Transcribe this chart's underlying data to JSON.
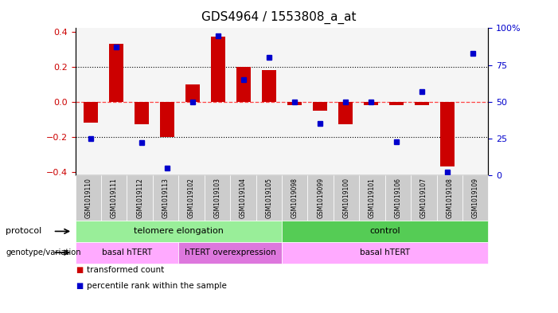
{
  "title": "GDS4964 / 1553808_a_at",
  "samples": [
    "GSM1019110",
    "GSM1019111",
    "GSM1019112",
    "GSM1019113",
    "GSM1019102",
    "GSM1019103",
    "GSM1019104",
    "GSM1019105",
    "GSM1019098",
    "GSM1019099",
    "GSM1019100",
    "GSM1019101",
    "GSM1019106",
    "GSM1019107",
    "GSM1019108",
    "GSM1019109"
  ],
  "bar_values": [
    -0.12,
    0.33,
    -0.13,
    -0.2,
    0.1,
    0.37,
    0.2,
    0.18,
    -0.02,
    -0.05,
    -0.13,
    -0.02,
    -0.02,
    -0.02,
    -0.37,
    0.0
  ],
  "dot_values": [
    25,
    87,
    22,
    5,
    50,
    95,
    65,
    80,
    50,
    35,
    50,
    50,
    23,
    57,
    2,
    83
  ],
  "ylim_left": [
    -0.42,
    0.42
  ],
  "ylim_right": [
    0,
    100
  ],
  "yticks_left": [
    -0.4,
    -0.2,
    0.0,
    0.2,
    0.4
  ],
  "yticks_right": [
    0,
    25,
    50,
    75,
    100
  ],
  "ytick_labels_right": [
    "0",
    "25",
    "50",
    "75",
    "100%"
  ],
  "bar_color": "#cc0000",
  "dot_color": "#0000cc",
  "hline_color": "#ff4444",
  "dotted_color": "#000000",
  "plot_bg_color": "#f5f5f5",
  "protocol_groups": [
    {
      "label": "telomere elongation",
      "start": 0,
      "end": 7,
      "color": "#99ee99"
    },
    {
      "label": "control",
      "start": 8,
      "end": 15,
      "color": "#55cc55"
    }
  ],
  "genotype_groups": [
    {
      "label": "basal hTERT",
      "start": 0,
      "end": 3,
      "color": "#ffaaff"
    },
    {
      "label": "hTERT overexpression",
      "start": 4,
      "end": 7,
      "color": "#dd77dd"
    },
    {
      "label": "basal hTERT",
      "start": 8,
      "end": 15,
      "color": "#ffaaff"
    }
  ],
  "legend_items": [
    {
      "label": "transformed count",
      "color": "#cc0000"
    },
    {
      "label": "percentile rank within the sample",
      "color": "#0000cc"
    }
  ],
  "bg_color": "#ffffff",
  "tick_label_color_left": "#cc0000",
  "tick_label_color_right": "#0000cc",
  "gsm_row_color": "#cccccc"
}
